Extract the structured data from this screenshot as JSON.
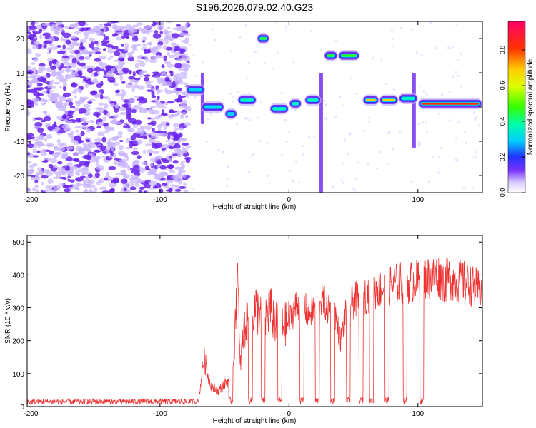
{
  "title": "S196.2026.079.02.40.G23",
  "chart_data": [
    {
      "type": "heatmap",
      "xlabel": "Height of straight line (km)",
      "ylabel": "Frequency (Hz)",
      "xlim": [
        -203,
        150
      ],
      "ylim": [
        -25,
        25
      ],
      "xticks": [
        -200,
        -100,
        0,
        100
      ],
      "yticks": [
        -20,
        -10,
        0,
        10,
        20
      ],
      "colorbar": {
        "label": "Normalized spectral amplitude",
        "range": [
          0,
          0.96
        ],
        "ticks": [
          0.0,
          0.2,
          0.4,
          0.6,
          0.8
        ]
      },
      "noise_region": {
        "x_from": -203,
        "x_to": -78,
        "freq_from": -25,
        "freq_to": 25,
        "amplitude": 0.12
      },
      "tracks": [
        {
          "name": "track-1",
          "x_start": -80,
          "x_end": -65,
          "freq": 5,
          "amplitude": 0.3
        },
        {
          "name": "track-2",
          "x_start": -68,
          "x_end": -50,
          "freq": 0,
          "amplitude": 0.25
        },
        {
          "name": "track-3",
          "x_start": -50,
          "x_end": -40,
          "freq": -2,
          "amplitude": 0.3
        },
        {
          "name": "track-4",
          "x_start": -40,
          "x_end": -25,
          "freq": 2,
          "amplitude": 0.45
        },
        {
          "name": "track-5",
          "x_start": -25,
          "x_end": -15,
          "freq": 20,
          "amplitude": 0.5
        },
        {
          "name": "track-6",
          "x_start": -15,
          "x_end": 0,
          "freq": -0.5,
          "amplitude": 0.4
        },
        {
          "name": "track-7",
          "x_start": 0,
          "x_end": 10,
          "freq": 1,
          "amplitude": 0.4
        },
        {
          "name": "track-8",
          "x_start": 12,
          "x_end": 25,
          "freq": 2,
          "amplitude": 0.45
        },
        {
          "name": "track-9",
          "x_start": 27,
          "x_end": 38,
          "freq": 15,
          "amplitude": 0.5
        },
        {
          "name": "track-10",
          "x_start": 38,
          "x_end": 55,
          "freq": 15,
          "amplitude": 0.55
        },
        {
          "name": "track-11",
          "x_start": 57,
          "x_end": 70,
          "freq": 2,
          "amplitude": 0.75
        },
        {
          "name": "track-12",
          "x_start": 70,
          "x_end": 85,
          "freq": 2,
          "amplitude": 0.7
        },
        {
          "name": "track-13",
          "x_start": 85,
          "x_end": 100,
          "freq": 2.5,
          "amplitude": 0.45
        },
        {
          "name": "track-14",
          "x_start": 100,
          "x_end": 150,
          "freq": 1,
          "amplitude": 0.9
        }
      ],
      "spikes": [
        {
          "x": -67,
          "freq_from": -5,
          "freq_to": 10
        },
        {
          "x": 25,
          "freq_from": -25,
          "freq_to": 10
        },
        {
          "x": 97,
          "freq_from": -12,
          "freq_to": 10
        }
      ]
    },
    {
      "type": "line",
      "xlabel": "Height of straight line (km)",
      "ylabel": "SNR (10 * v/v)",
      "xlim": [
        -203,
        150
      ],
      "ylim": [
        0,
        520
      ],
      "xticks": [
        -200,
        -100,
        0,
        100
      ],
      "yticks": [
        0,
        100,
        200,
        300,
        400,
        500
      ],
      "color": "#ee3333",
      "series": [
        {
          "name": "SNR",
          "x": [
            -203,
            -180,
            -150,
            -120,
            -90,
            -70,
            -66,
            -63,
            -60,
            -55,
            -50,
            -45,
            -42,
            -40,
            -38,
            -35,
            -30,
            -25,
            -20,
            -15,
            -10,
            -5,
            0,
            5,
            10,
            15,
            20,
            25,
            30,
            35,
            40,
            45,
            50,
            55,
            60,
            65,
            70,
            75,
            80,
            85,
            90,
            95,
            100,
            105,
            110,
            115,
            120,
            125,
            130,
            135,
            140,
            145,
            150
          ],
          "y": [
            15,
            15,
            16,
            17,
            18,
            20,
            150,
            100,
            60,
            45,
            70,
            90,
            200,
            435,
            120,
            230,
            280,
            300,
            250,
            300,
            250,
            240,
            260,
            300,
            320,
            280,
            300,
            330,
            300,
            300,
            200,
            300,
            320,
            330,
            340,
            350,
            360,
            360,
            370,
            380,
            370,
            380,
            380,
            390,
            390,
            400,
            380,
            390,
            380,
            380,
            370,
            360,
            350
          ]
        }
      ],
      "dips_to_baseline_at": [
        -45,
        -30,
        -20,
        -7,
        10,
        22,
        34,
        46,
        56,
        64,
        76,
        90,
        103
      ]
    }
  ]
}
